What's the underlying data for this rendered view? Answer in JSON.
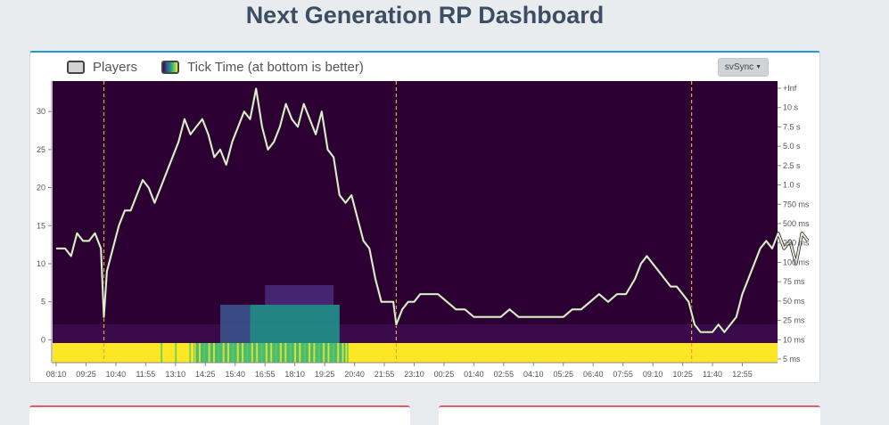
{
  "page": {
    "title": "Next Generation RP Dashboard"
  },
  "legend": {
    "players_label": "Players",
    "tick_label": "Tick Time (at bottom is better)"
  },
  "controls": {
    "sync_label": "svSync"
  },
  "colors": {
    "background_plot": "#2c0033",
    "line": "#e8e8d8",
    "event_marker": "#e6a23c",
    "heat_low": "#fde725",
    "heat_mid": "#21918c",
    "heat_mid2": "#35b779",
    "heat_band": "#440154"
  },
  "chart_data": {
    "type": "line",
    "title": "",
    "xlabel": "",
    "ylabel": "",
    "ylim": [
      -3,
      34
    ],
    "y_ticks": [
      0,
      5,
      10,
      15,
      20,
      25,
      30
    ],
    "x_tick_labels": [
      "08:10",
      "09:25",
      "10:40",
      "11:55",
      "13:10",
      "14:25",
      "15:40",
      "16:55",
      "18:10",
      "19:25",
      "20:40",
      "21:55",
      "23:10",
      "00:25",
      "01:40",
      "02:55",
      "04:10",
      "05:25",
      "06:40",
      "07:55",
      "09:10",
      "10:25",
      "11:40",
      "12:55"
    ],
    "right_axis_labels": [
      "+Inf",
      "10 s",
      "7.5 s",
      "5.0 s",
      "2.5 s",
      "1.0 s",
      "750 ms",
      "500 ms",
      "250 ms",
      "100 ms",
      "75 ms",
      "50 ms",
      "25 ms",
      "10 ms",
      "5 ms"
    ],
    "grid": false,
    "legend": "top-left",
    "event_markers_x_index": [
      1.6,
      11.4,
      21.3
    ],
    "series": [
      {
        "name": "Players",
        "points": [
          [
            0,
            12
          ],
          [
            0.3,
            12
          ],
          [
            0.5,
            11
          ],
          [
            0.7,
            14
          ],
          [
            0.9,
            13
          ],
          [
            1.1,
            13
          ],
          [
            1.3,
            14
          ],
          [
            1.5,
            12
          ],
          [
            1.6,
            3
          ],
          [
            1.7,
            9
          ],
          [
            1.9,
            12
          ],
          [
            2.1,
            15
          ],
          [
            2.3,
            17
          ],
          [
            2.5,
            17
          ],
          [
            2.7,
            19
          ],
          [
            2.9,
            21
          ],
          [
            3.1,
            20
          ],
          [
            3.3,
            18
          ],
          [
            3.5,
            20
          ],
          [
            3.7,
            22
          ],
          [
            3.9,
            24
          ],
          [
            4.1,
            26
          ],
          [
            4.3,
            29
          ],
          [
            4.5,
            27
          ],
          [
            4.7,
            28
          ],
          [
            4.9,
            29
          ],
          [
            5.1,
            27
          ],
          [
            5.3,
            24
          ],
          [
            5.5,
            25
          ],
          [
            5.7,
            23
          ],
          [
            5.9,
            26
          ],
          [
            6.1,
            28
          ],
          [
            6.3,
            30
          ],
          [
            6.5,
            29
          ],
          [
            6.7,
            33
          ],
          [
            6.9,
            28
          ],
          [
            7.1,
            25
          ],
          [
            7.3,
            26
          ],
          [
            7.5,
            28
          ],
          [
            7.7,
            31
          ],
          [
            7.9,
            29
          ],
          [
            8.1,
            28
          ],
          [
            8.3,
            31
          ],
          [
            8.5,
            29
          ],
          [
            8.7,
            27
          ],
          [
            8.9,
            30
          ],
          [
            9.1,
            25
          ],
          [
            9.3,
            24
          ],
          [
            9.5,
            19
          ],
          [
            9.7,
            18
          ],
          [
            9.9,
            19
          ],
          [
            10.1,
            16
          ],
          [
            10.3,
            13
          ],
          [
            10.5,
            12
          ],
          [
            10.7,
            8
          ],
          [
            10.9,
            5
          ],
          [
            11.1,
            5
          ],
          [
            11.3,
            5
          ],
          [
            11.4,
            2
          ],
          [
            11.6,
            4
          ],
          [
            11.8,
            5
          ],
          [
            12.0,
            5
          ],
          [
            12.2,
            6
          ],
          [
            12.5,
            6
          ],
          [
            12.8,
            6
          ],
          [
            13.1,
            5
          ],
          [
            13.4,
            4
          ],
          [
            13.7,
            4
          ],
          [
            14.0,
            3
          ],
          [
            14.3,
            3
          ],
          [
            14.6,
            3
          ],
          [
            14.9,
            3
          ],
          [
            15.2,
            4
          ],
          [
            15.5,
            3
          ],
          [
            15.8,
            3
          ],
          [
            16.1,
            3
          ],
          [
            16.4,
            3
          ],
          [
            16.7,
            3
          ],
          [
            17.0,
            3
          ],
          [
            17.3,
            4
          ],
          [
            17.6,
            4
          ],
          [
            17.9,
            5
          ],
          [
            18.2,
            6
          ],
          [
            18.5,
            5
          ],
          [
            18.8,
            6
          ],
          [
            19.1,
            6
          ],
          [
            19.4,
            8
          ],
          [
            19.6,
            10
          ],
          [
            19.8,
            11
          ],
          [
            20.0,
            10
          ],
          [
            20.2,
            9
          ],
          [
            20.4,
            8
          ],
          [
            20.6,
            7
          ],
          [
            20.8,
            7
          ],
          [
            21.0,
            6
          ],
          [
            21.2,
            5
          ],
          [
            21.4,
            2
          ],
          [
            21.6,
            1
          ],
          [
            21.8,
            1
          ],
          [
            22.0,
            1
          ],
          [
            22.2,
            2
          ],
          [
            22.4,
            1
          ],
          [
            22.6,
            2
          ],
          [
            22.8,
            3
          ],
          [
            23.0,
            6
          ],
          [
            23.2,
            8
          ],
          [
            23.4,
            10
          ],
          [
            23.6,
            12
          ],
          [
            23.8,
            13
          ],
          [
            24.0,
            12
          ],
          [
            24.2,
            14
          ],
          [
            24.4,
            12
          ],
          [
            24.6,
            13
          ],
          [
            24.8,
            10
          ],
          [
            25.0,
            14
          ],
          [
            25.2,
            13
          ]
        ]
      }
    ]
  }
}
